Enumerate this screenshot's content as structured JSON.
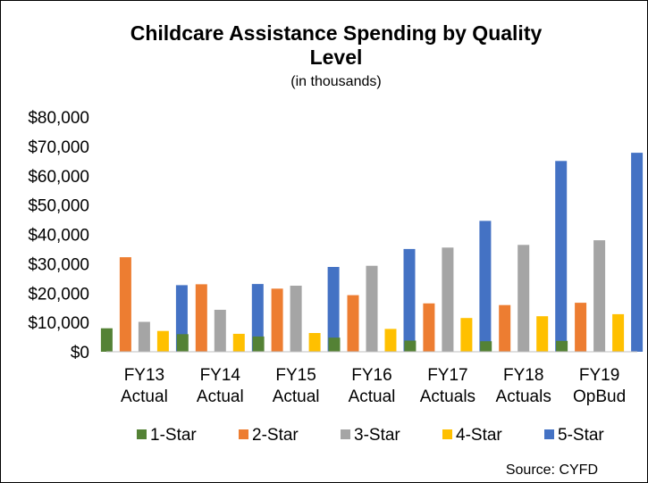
{
  "chart_data": {
    "type": "bar",
    "title_lines": [
      "Childcare Assistance Spending by Quality",
      "Level"
    ],
    "subtitle": "(in thousands)",
    "categories": [
      [
        "FY13",
        "Actual"
      ],
      [
        "FY14",
        "Actual"
      ],
      [
        "FY15",
        "Actual"
      ],
      [
        "FY16",
        "Actual"
      ],
      [
        "FY17",
        "Actuals"
      ],
      [
        "FY18",
        "Actuals"
      ],
      [
        "FY19",
        "OpBud"
      ]
    ],
    "series": [
      {
        "name": "1-Star",
        "color": "#548235",
        "values": [
          8000,
          6000,
          5200,
          4800,
          3800,
          3600,
          3700
        ]
      },
      {
        "name": "2-Star",
        "color": "#ED7D31",
        "values": [
          32200,
          23000,
          21500,
          19300,
          16500,
          15900,
          16700
        ]
      },
      {
        "name": "3-Star",
        "color": "#A5A5A5",
        "values": [
          10200,
          14300,
          22500,
          29300,
          35500,
          36400,
          38000
        ]
      },
      {
        "name": "4-Star",
        "color": "#FFC000",
        "values": [
          7100,
          6100,
          6400,
          7800,
          11500,
          12100,
          12800
        ]
      },
      {
        "name": "5-Star",
        "color": "#4472C4",
        "values": [
          22700,
          23100,
          28900,
          35000,
          44600,
          65000,
          67800
        ]
      }
    ],
    "yticks": [
      "$0",
      "$10,000",
      "$20,000",
      "$30,000",
      "$40,000",
      "$50,000",
      "$60,000",
      "$70,000",
      "$80,000"
    ],
    "ylim": [
      0,
      80000
    ],
    "grid": false,
    "legend_position": "bottom",
    "source": "Source: CYFD"
  }
}
